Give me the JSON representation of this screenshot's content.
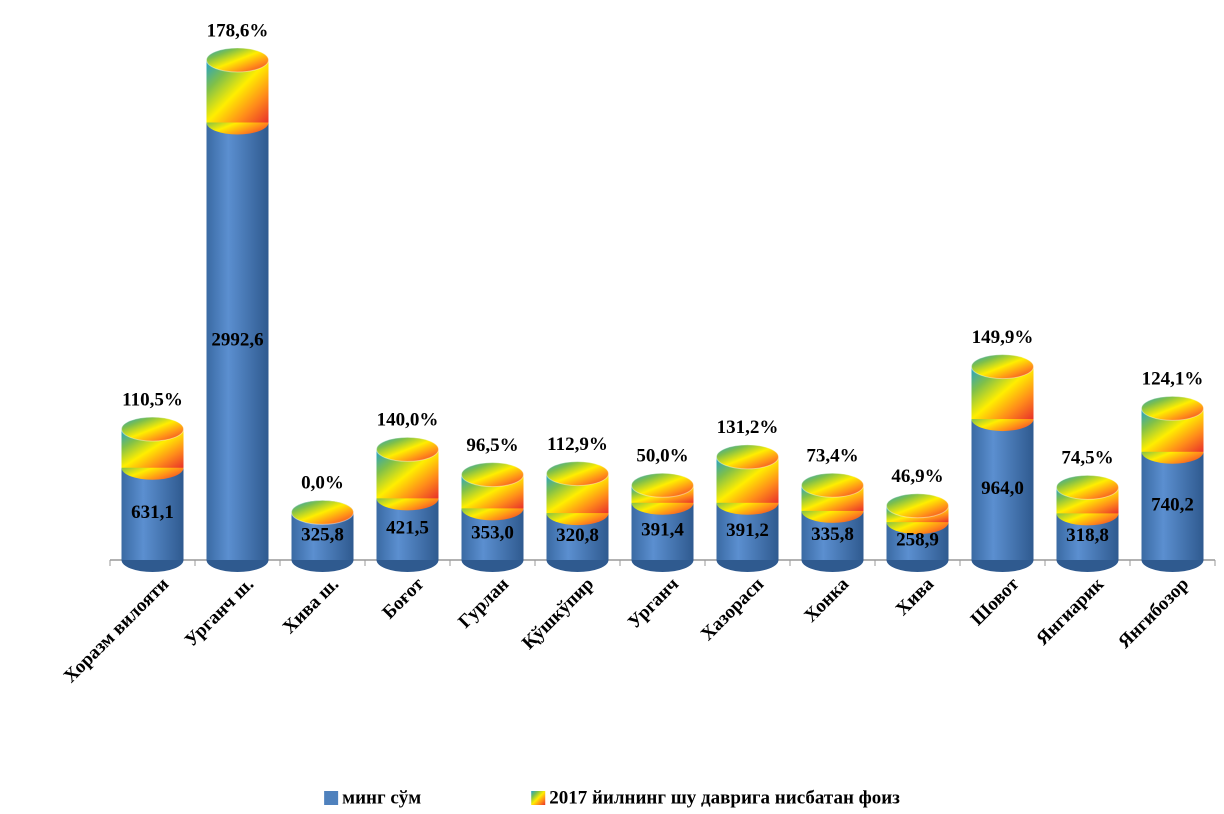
{
  "chart_data": {
    "type": "cylinder_stacked",
    "categories": [
      "Хоразм вилояти",
      "Урганч ш.",
      "Хива ш.",
      "Боғот",
      "Гурлан",
      "Қўшкўпир",
      "Урганч",
      "Хазорасп",
      "Хонка",
      "Хива",
      "Шовот",
      "Янгиарик",
      "Янгибозор"
    ],
    "series": [
      {
        "name": "минг сўм",
        "color": "#4f81bd",
        "values": [
          631.1,
          2992.6,
          325.8,
          421.5,
          353.0,
          320.8,
          391.4,
          391.2,
          335.8,
          258.9,
          964.0,
          318.8,
          740.2
        ],
        "value_labels": [
          "631,1",
          "2992,6",
          "325,8",
          "421,5",
          "353,0",
          "320,8",
          "391,4",
          "391,2",
          "335,8",
          "258,9",
          "964,0",
          "318,8",
          "740,2"
        ]
      },
      {
        "name": "2017 йилнинг шу даврига нисбатан фоиз",
        "colors": [
          "#1f9fd0",
          "#7fc04a",
          "#ffee00",
          "#ff8c1a",
          "#e8302a"
        ],
        "values": [
          110.5,
          178.6,
          0.0,
          140.0,
          96.5,
          112.9,
          50.0,
          131.2,
          73.4,
          46.9,
          149.9,
          74.5,
          124.1
        ],
        "value_labels": [
          "110,5%",
          "178,6%",
          "0,0%",
          "140,0%",
          "96,5%",
          "112,9%",
          "50,0%",
          "131,2%",
          "73,4%",
          "46,9%",
          "149,9%",
          "74,5%",
          "124,1%"
        ]
      }
    ]
  }
}
